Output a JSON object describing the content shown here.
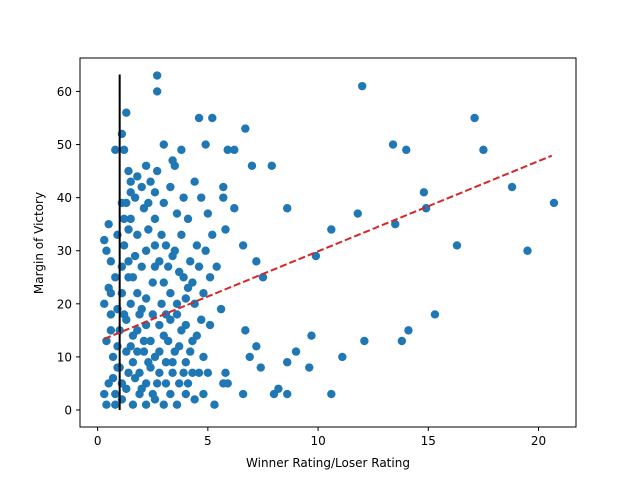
{
  "chart_data": {
    "type": "scatter",
    "title": "",
    "xlabel": "Winner Rating/Loser Rating",
    "ylabel": "Margin of Victory",
    "xlim": [
      -0.8,
      21.7
    ],
    "ylim": [
      -3.2,
      66.3
    ],
    "xticks": [
      0,
      5,
      10,
      15,
      20
    ],
    "yticks": [
      0,
      10,
      20,
      30,
      40,
      50,
      60
    ],
    "grid": false,
    "legend": "none",
    "marker_color": "#1f77b4",
    "trend_color": "#d62728",
    "vline_color": "#000000",
    "points": [
      [
        2.7,
        63
      ],
      [
        2.7,
        60
      ],
      [
        12.0,
        61
      ],
      [
        17.1,
        55
      ],
      [
        17.5,
        49
      ],
      [
        13.4,
        50
      ],
      [
        14.0,
        49
      ],
      [
        14.8,
        41
      ],
      [
        14.9,
        38
      ],
      [
        18.8,
        42
      ],
      [
        20.7,
        39
      ],
      [
        16.3,
        31
      ],
      [
        13.5,
        35
      ],
      [
        11.8,
        37
      ],
      [
        10.6,
        34
      ],
      [
        9.9,
        29
      ],
      [
        19.5,
        30
      ],
      [
        15.3,
        18
      ],
      [
        14.1,
        15
      ],
      [
        13.8,
        13
      ],
      [
        12.1,
        13
      ],
      [
        11.1,
        10
      ],
      [
        9.7,
        14
      ],
      [
        9.6,
        8
      ],
      [
        9.0,
        11
      ],
      [
        8.6,
        9
      ],
      [
        8.2,
        4
      ],
      [
        8.0,
        3
      ],
      [
        8.6,
        3
      ],
      [
        10.6,
        3
      ],
      [
        7.9,
        46
      ],
      [
        8.6,
        38
      ],
      [
        7.0,
        46
      ],
      [
        7.2,
        28
      ],
      [
        7.5,
        25
      ],
      [
        6.7,
        53
      ],
      [
        6.2,
        49
      ],
      [
        5.9,
        49
      ],
      [
        5.7,
        40
      ],
      [
        5.8,
        34
      ],
      [
        5.7,
        42
      ],
      [
        6.2,
        38
      ],
      [
        6.6,
        31
      ],
      [
        6.7,
        15
      ],
      [
        7.2,
        12
      ],
      [
        7.4,
        8
      ],
      [
        6.9,
        10
      ],
      [
        6.6,
        3
      ],
      [
        5.8,
        7
      ],
      [
        5.9,
        5
      ],
      [
        5.7,
        5
      ],
      [
        5.2,
        55
      ],
      [
        4.6,
        55
      ],
      [
        4.9,
        50
      ],
      [
        3.8,
        49
      ],
      [
        3.4,
        47
      ],
      [
        3.5,
        46
      ],
      [
        3.0,
        50
      ],
      [
        2.6,
        41
      ],
      [
        2.2,
        46
      ],
      [
        1.1,
        52
      ],
      [
        1.2,
        49
      ],
      [
        1.3,
        56
      ],
      [
        1.4,
        45
      ],
      [
        1.5,
        43
      ],
      [
        0.8,
        49
      ],
      [
        1.1,
        39
      ],
      [
        1.3,
        39
      ],
      [
        0.5,
        35
      ],
      [
        0.3,
        32
      ],
      [
        0.4,
        30
      ],
      [
        0.6,
        28
      ],
      [
        0.3,
        20
      ],
      [
        0.5,
        23
      ],
      [
        0.6,
        18
      ],
      [
        0.4,
        13
      ],
      [
        0.7,
        10
      ],
      [
        0.9,
        8
      ],
      [
        0.5,
        5
      ],
      [
        0.3,
        3
      ],
      [
        0.4,
        1
      ],
      [
        0.8,
        1
      ],
      [
        1.1,
        2
      ],
      [
        1.3,
        4
      ],
      [
        1.6,
        1
      ],
      [
        1.9,
        3
      ],
      [
        2.2,
        1
      ],
      [
        2.6,
        2
      ],
      [
        3.0,
        1
      ],
      [
        3.3,
        3
      ],
      [
        3.6,
        1
      ],
      [
        4.0,
        3
      ],
      [
        4.4,
        2
      ],
      [
        4.8,
        3
      ],
      [
        5.3,
        1
      ],
      [
        4.1,
        5
      ],
      [
        3.9,
        7
      ],
      [
        4.3,
        7
      ],
      [
        4.6,
        7
      ],
      [
        5.0,
        7
      ],
      [
        4.8,
        10
      ],
      [
        4.3,
        13
      ],
      [
        4.0,
        16
      ],
      [
        3.6,
        18
      ],
      [
        3.3,
        22
      ],
      [
        3.0,
        24
      ],
      [
        2.6,
        27
      ],
      [
        2.2,
        30
      ],
      [
        1.8,
        33
      ],
      [
        1.5,
        36
      ],
      [
        1.2,
        31
      ],
      [
        1.4,
        28
      ],
      [
        1.6,
        25
      ],
      [
        1.8,
        22
      ],
      [
        2.0,
        19
      ],
      [
        2.2,
        16
      ],
      [
        2.4,
        13
      ],
      [
        2.6,
        10
      ],
      [
        2.8,
        7
      ],
      [
        3.1,
        5
      ],
      [
        3.4,
        9
      ],
      [
        3.7,
        12
      ],
      [
        4.0,
        21
      ],
      [
        4.3,
        24
      ],
      [
        4.6,
        27
      ],
      [
        4.9,
        30
      ],
      [
        5.2,
        33
      ],
      [
        5.0,
        37
      ],
      [
        4.7,
        40
      ],
      [
        4.4,
        43
      ],
      [
        4.1,
        36
      ],
      [
        3.8,
        33
      ],
      [
        3.5,
        30
      ],
      [
        3.2,
        27
      ],
      [
        2.9,
        33
      ],
      [
        2.6,
        36
      ],
      [
        2.3,
        39
      ],
      [
        2.0,
        42
      ],
      [
        1.7,
        40
      ],
      [
        1.4,
        34
      ],
      [
        1.1,
        22
      ],
      [
        0.8,
        25
      ],
      [
        0.6,
        15
      ],
      [
        0.9,
        12
      ],
      [
        1.2,
        18
      ],
      [
        1.5,
        20
      ],
      [
        1.8,
        15
      ],
      [
        2.1,
        11
      ],
      [
        2.4,
        8
      ],
      [
        2.7,
        5
      ],
      [
        3.0,
        14
      ],
      [
        3.3,
        17
      ],
      [
        3.6,
        20
      ],
      [
        3.9,
        25
      ],
      [
        4.2,
        28
      ],
      [
        4.5,
        31
      ],
      [
        4.8,
        22
      ],
      [
        5.1,
        25
      ],
      [
        5.4,
        27
      ],
      [
        5.6,
        19
      ],
      [
        5.1,
        16
      ],
      [
        4.7,
        17
      ],
      [
        4.4,
        20
      ],
      [
        4.1,
        23
      ],
      [
        3.7,
        26
      ],
      [
        3.4,
        29
      ],
      [
        3.1,
        31
      ],
      [
        2.8,
        28
      ],
      [
        2.5,
        24
      ],
      [
        2.2,
        21
      ],
      [
        1.9,
        18
      ],
      [
        1.6,
        14
      ],
      [
        1.3,
        11
      ],
      [
        1.0,
        8
      ],
      [
        0.7,
        6
      ],
      [
        1.0,
        15
      ],
      [
        1.3,
        17
      ],
      [
        1.6,
        9
      ],
      [
        1.9,
        7
      ],
      [
        2.2,
        5
      ],
      [
        2.5,
        3
      ],
      [
        2.8,
        11
      ],
      [
        3.1,
        9
      ],
      [
        3.4,
        7
      ],
      [
        3.7,
        5
      ],
      [
        4.0,
        9
      ],
      [
        2.0,
        27
      ],
      [
        1.7,
        29
      ],
      [
        1.4,
        25
      ],
      [
        1.1,
        27
      ],
      [
        0.9,
        19
      ],
      [
        0.6,
        22
      ],
      [
        1.2,
        36
      ],
      [
        0.9,
        33
      ],
      [
        1.5,
        41
      ],
      [
        2.3,
        34
      ],
      [
        2.6,
        31
      ],
      [
        2.9,
        20
      ],
      [
        3.2,
        13
      ],
      [
        3.5,
        11
      ],
      [
        3.8,
        15
      ],
      [
        4.2,
        11
      ],
      [
        4.5,
        14
      ],
      [
        2.5,
        18
      ],
      [
        2.8,
        16
      ],
      [
        3.1,
        18
      ],
      [
        1.7,
        6
      ],
      [
        2.0,
        4
      ],
      [
        2.3,
        9
      ],
      [
        1.4,
        7
      ],
      [
        1.1,
        5
      ],
      [
        0.8,
        3
      ],
      [
        1.5,
        12
      ],
      [
        1.8,
        11
      ],
      [
        2.1,
        13
      ],
      [
        3.0,
        39
      ],
      [
        3.3,
        42
      ],
      [
        3.6,
        37
      ],
      [
        3.9,
        40
      ],
      [
        2.1,
        38
      ],
      [
        1.8,
        44
      ],
      [
        2.4,
        43
      ],
      [
        2.7,
        45
      ]
    ],
    "trend_line": {
      "x": [
        0.3,
        20.6
      ],
      "y": [
        13.4,
        47.9
      ]
    },
    "vertical_line": {
      "x": 1.0,
      "y": [
        0,
        63.2
      ]
    }
  }
}
